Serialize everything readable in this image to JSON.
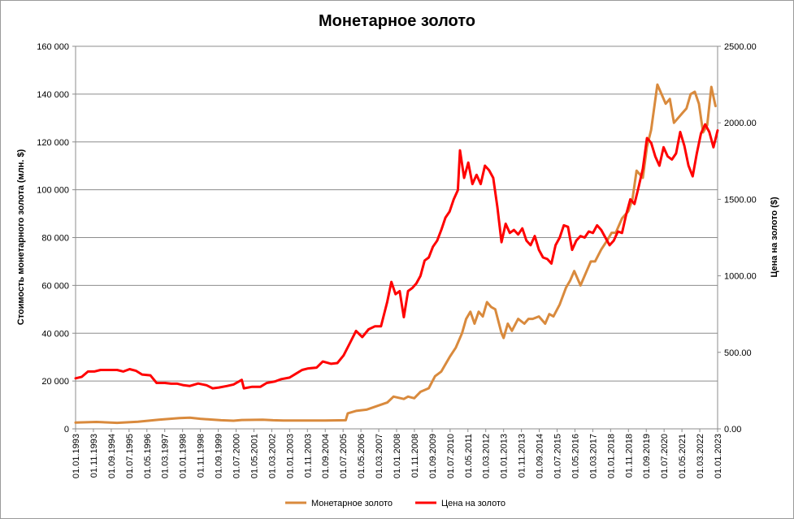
{
  "chart_data": {
    "type": "line",
    "title": "Монетарное золото",
    "ylabel": "Стоимость монетарного золота (млн. $)",
    "y2label": "Цена на золото ($)",
    "ylim": [
      0,
      160000
    ],
    "y2lim": [
      0,
      2500
    ],
    "y_ticks": [
      "0",
      "20 000",
      "40 000",
      "60 000",
      "80 000",
      "100 000",
      "120 000",
      "140 000",
      "160 000"
    ],
    "y2_ticks": [
      "0.00",
      "500.00",
      "1000.00",
      "1500.00",
      "2000.00",
      "2500.00"
    ],
    "x_ticks": [
      "01.01.1993",
      "01.11.1993",
      "01.09.1994",
      "01.07.1995",
      "01.05.1996",
      "01.03.1997",
      "01.01.1998",
      "01.11.1998",
      "01.09.1999",
      "01.07.2000",
      "01.05.2001",
      "01.03.2002",
      "01.01.2003",
      "01.11.2003",
      "01.09.2004",
      "01.07.2005",
      "01.05.2006",
      "01.03.2007",
      "01.01.2008",
      "01.11.2008",
      "01.09.2009",
      "01.07.2010",
      "01.05.2011",
      "01.03.2012",
      "01.01.2013",
      "01.11.2013",
      "01.09.2014",
      "01.07.2015",
      "01.05.2016",
      "01.03.2017",
      "01.01.2018",
      "01.11.2018",
      "01.09.2019",
      "01.07.2020",
      "01.05.2021",
      "01.03.2022",
      "01.01.2023"
    ],
    "legend_position": "bottom",
    "grid": true,
    "series": [
      {
        "name": "Монетарное золото",
        "axis": "left",
        "color": "#d98a3d",
        "points": [
          [
            1993.0,
            2600
          ],
          [
            1994.0,
            2900
          ],
          [
            1995.0,
            2500
          ],
          [
            1996.0,
            3000
          ],
          [
            1997.0,
            3800
          ],
          [
            1998.0,
            4500
          ],
          [
            1998.5,
            4700
          ],
          [
            1999.0,
            4200
          ],
          [
            1999.5,
            3900
          ],
          [
            2000.0,
            3600
          ],
          [
            2000.6,
            3400
          ],
          [
            2001.0,
            3700
          ],
          [
            2002.0,
            3800
          ],
          [
            2002.5,
            3600
          ],
          [
            2003.0,
            3500
          ],
          [
            2004.0,
            3500
          ],
          [
            2005.0,
            3500
          ],
          [
            2006.0,
            3600
          ],
          [
            2006.1,
            6500
          ],
          [
            2006.5,
            7500
          ],
          [
            2007.0,
            8000
          ],
          [
            2008.0,
            11000
          ],
          [
            2008.3,
            13500
          ],
          [
            2008.8,
            12500
          ],
          [
            2009.0,
            13500
          ],
          [
            2009.3,
            12800
          ],
          [
            2009.6,
            15500
          ],
          [
            2010.0,
            17000
          ],
          [
            2010.3,
            22000
          ],
          [
            2010.6,
            24000
          ],
          [
            2011.0,
            30000
          ],
          [
            2011.3,
            34000
          ],
          [
            2011.6,
            40000
          ],
          [
            2011.8,
            46000
          ],
          [
            2012.0,
            49000
          ],
          [
            2012.2,
            44000
          ],
          [
            2012.4,
            49000
          ],
          [
            2012.6,
            47000
          ],
          [
            2012.8,
            53000
          ],
          [
            2013.0,
            51000
          ],
          [
            2013.2,
            50000
          ],
          [
            2013.5,
            40000
          ],
          [
            2013.6,
            38000
          ],
          [
            2013.8,
            44000
          ],
          [
            2014.0,
            41000
          ],
          [
            2014.3,
            46000
          ],
          [
            2014.6,
            44000
          ],
          [
            2014.8,
            46000
          ],
          [
            2015.0,
            46000
          ],
          [
            2015.3,
            47000
          ],
          [
            2015.6,
            44000
          ],
          [
            2015.8,
            48000
          ],
          [
            2016.0,
            47000
          ],
          [
            2016.3,
            52000
          ],
          [
            2016.6,
            59000
          ],
          [
            2016.8,
            62000
          ],
          [
            2017.0,
            66000
          ],
          [
            2017.3,
            60000
          ],
          [
            2017.6,
            66000
          ],
          [
            2017.8,
            70000
          ],
          [
            2018.0,
            70000
          ],
          [
            2018.3,
            75000
          ],
          [
            2018.6,
            79000
          ],
          [
            2018.8,
            82000
          ],
          [
            2019.0,
            82000
          ],
          [
            2019.3,
            88000
          ],
          [
            2019.6,
            91000
          ],
          [
            2019.8,
            96000
          ],
          [
            2020.0,
            108000
          ],
          [
            2020.3,
            105000
          ],
          [
            2020.5,
            118000
          ],
          [
            2020.7,
            125000
          ],
          [
            2021.0,
            144000
          ],
          [
            2021.2,
            140000
          ],
          [
            2021.4,
            136000
          ],
          [
            2021.6,
            138000
          ],
          [
            2021.8,
            128000
          ],
          [
            2022.0,
            130000
          ],
          [
            2022.2,
            132000
          ],
          [
            2022.4,
            134000
          ],
          [
            2022.6,
            140000
          ],
          [
            2022.8,
            141000
          ],
          [
            2023.0,
            136000
          ],
          [
            2023.2,
            124000
          ],
          [
            2023.4,
            127000
          ],
          [
            2023.6,
            143000
          ],
          [
            2023.8,
            135000
          ]
        ]
      },
      {
        "name": "Цена на золото",
        "axis": "right",
        "color": "#ff0000",
        "points": [
          [
            1993.0,
            330
          ],
          [
            1993.3,
            340
          ],
          [
            1993.6,
            375
          ],
          [
            1993.9,
            375
          ],
          [
            1994.2,
            385
          ],
          [
            1994.6,
            385
          ],
          [
            1995.0,
            385
          ],
          [
            1995.3,
            375
          ],
          [
            1995.6,
            390
          ],
          [
            1995.9,
            380
          ],
          [
            1996.2,
            355
          ],
          [
            1996.6,
            350
          ],
          [
            1996.9,
            300
          ],
          [
            1997.3,
            300
          ],
          [
            1997.6,
            295
          ],
          [
            1997.9,
            295
          ],
          [
            1998.2,
            285
          ],
          [
            1998.5,
            280
          ],
          [
            1998.9,
            296
          ],
          [
            1999.3,
            285
          ],
          [
            1999.6,
            265
          ],
          [
            1999.9,
            270
          ],
          [
            2000.3,
            280
          ],
          [
            2000.6,
            290
          ],
          [
            2001.0,
            320
          ],
          [
            2001.1,
            265
          ],
          [
            2001.5,
            275
          ],
          [
            2001.9,
            275
          ],
          [
            2002.2,
            300
          ],
          [
            2002.6,
            310
          ],
          [
            2002.9,
            325
          ],
          [
            2003.3,
            335
          ],
          [
            2003.6,
            360
          ],
          [
            2003.9,
            385
          ],
          [
            2004.2,
            395
          ],
          [
            2004.6,
            400
          ],
          [
            2004.9,
            440
          ],
          [
            2005.3,
            425
          ],
          [
            2005.6,
            430
          ],
          [
            2005.9,
            480
          ],
          [
            2006.2,
            560
          ],
          [
            2006.5,
            640
          ],
          [
            2006.8,
            600
          ],
          [
            2007.1,
            650
          ],
          [
            2007.4,
            670
          ],
          [
            2007.7,
            670
          ],
          [
            2008.0,
            830
          ],
          [
            2008.2,
            960
          ],
          [
            2008.4,
            880
          ],
          [
            2008.6,
            900
          ],
          [
            2008.8,
            730
          ],
          [
            2009.0,
            900
          ],
          [
            2009.2,
            920
          ],
          [
            2009.4,
            950
          ],
          [
            2009.6,
            1000
          ],
          [
            2009.8,
            1100
          ],
          [
            2010.0,
            1120
          ],
          [
            2010.2,
            1190
          ],
          [
            2010.4,
            1230
          ],
          [
            2010.6,
            1300
          ],
          [
            2010.8,
            1380
          ],
          [
            2011.0,
            1420
          ],
          [
            2011.2,
            1500
          ],
          [
            2011.4,
            1560
          ],
          [
            2011.5,
            1820
          ],
          [
            2011.7,
            1640
          ],
          [
            2011.9,
            1740
          ],
          [
            2012.1,
            1600
          ],
          [
            2012.3,
            1660
          ],
          [
            2012.5,
            1600
          ],
          [
            2012.7,
            1720
          ],
          [
            2012.9,
            1690
          ],
          [
            2013.1,
            1640
          ],
          [
            2013.3,
            1450
          ],
          [
            2013.5,
            1220
          ],
          [
            2013.7,
            1340
          ],
          [
            2013.9,
            1280
          ],
          [
            2014.1,
            1300
          ],
          [
            2014.3,
            1270
          ],
          [
            2014.5,
            1310
          ],
          [
            2014.7,
            1230
          ],
          [
            2014.9,
            1200
          ],
          [
            2015.1,
            1260
          ],
          [
            2015.3,
            1170
          ],
          [
            2015.5,
            1120
          ],
          [
            2015.7,
            1110
          ],
          [
            2015.9,
            1080
          ],
          [
            2016.1,
            1200
          ],
          [
            2016.3,
            1250
          ],
          [
            2016.5,
            1330
          ],
          [
            2016.7,
            1320
          ],
          [
            2016.9,
            1170
          ],
          [
            2017.1,
            1230
          ],
          [
            2017.3,
            1260
          ],
          [
            2017.5,
            1250
          ],
          [
            2017.7,
            1290
          ],
          [
            2017.9,
            1280
          ],
          [
            2018.1,
            1330
          ],
          [
            2018.3,
            1300
          ],
          [
            2018.5,
            1250
          ],
          [
            2018.7,
            1200
          ],
          [
            2018.9,
            1230
          ],
          [
            2019.1,
            1290
          ],
          [
            2019.3,
            1280
          ],
          [
            2019.5,
            1400
          ],
          [
            2019.7,
            1500
          ],
          [
            2019.9,
            1470
          ],
          [
            2020.1,
            1580
          ],
          [
            2020.3,
            1700
          ],
          [
            2020.5,
            1900
          ],
          [
            2020.7,
            1870
          ],
          [
            2020.9,
            1780
          ],
          [
            2021.1,
            1720
          ],
          [
            2021.3,
            1840
          ],
          [
            2021.5,
            1780
          ],
          [
            2021.7,
            1760
          ],
          [
            2021.9,
            1800
          ],
          [
            2022.1,
            1940
          ],
          [
            2022.3,
            1850
          ],
          [
            2022.5,
            1720
          ],
          [
            2022.7,
            1650
          ],
          [
            2022.9,
            1800
          ],
          [
            2023.1,
            1930
          ],
          [
            2023.3,
            1990
          ],
          [
            2023.5,
            1940
          ],
          [
            2023.7,
            1840
          ],
          [
            2023.9,
            1950
          ]
        ]
      }
    ]
  }
}
